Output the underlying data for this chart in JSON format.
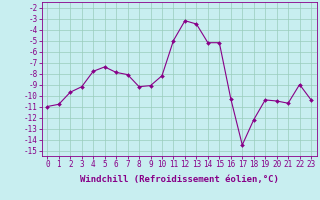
{
  "x": [
    0,
    1,
    2,
    3,
    4,
    5,
    6,
    7,
    8,
    9,
    10,
    11,
    12,
    13,
    14,
    15,
    16,
    17,
    18,
    19,
    20,
    21,
    22,
    23
  ],
  "y": [
    -11.0,
    -10.8,
    -9.7,
    -9.2,
    -7.8,
    -7.4,
    -7.9,
    -8.1,
    -9.2,
    -9.1,
    -8.2,
    -5.0,
    -3.2,
    -3.5,
    -5.2,
    -5.2,
    -10.3,
    -14.5,
    -12.2,
    -10.4,
    -10.5,
    -10.7,
    -9.0,
    -10.4
  ],
  "xlim": [
    -0.5,
    23.5
  ],
  "ylim": [
    -15.5,
    -1.5
  ],
  "yticks": [
    -2,
    -3,
    -4,
    -5,
    -6,
    -7,
    -8,
    -9,
    -10,
    -11,
    -12,
    -13,
    -14,
    -15
  ],
  "xticks": [
    0,
    1,
    2,
    3,
    4,
    5,
    6,
    7,
    8,
    9,
    10,
    11,
    12,
    13,
    14,
    15,
    16,
    17,
    18,
    19,
    20,
    21,
    22,
    23
  ],
  "xlabel": "Windchill (Refroidissement éolien,°C)",
  "line_color": "#880088",
  "marker_color": "#880088",
  "bg_color": "#c8eef0",
  "grid_color": "#99ccbb",
  "tick_fontsize": 5.5,
  "label_fontsize": 6.5
}
